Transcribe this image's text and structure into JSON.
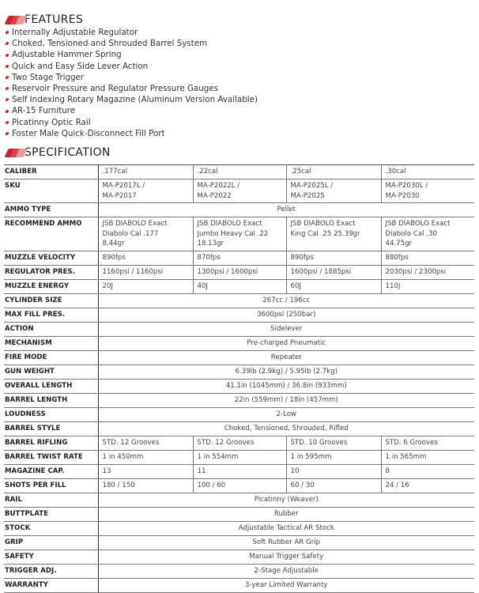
{
  "features": {
    "title": "FEATURES",
    "items": [
      "Internally Adjustable Regulator",
      "Choked, Tensioned and Shrouded Barrel System",
      "Adjustable Hammer Spring",
      "Quick and Easy Side Lever Action",
      "Two Stage Trigger",
      "Reservoir Pressure and Regulator Pressure Gauges",
      "Self Indexing Rotary Magazine (Aluminum Version Available)",
      "AR-15 Furniture",
      "Picatinny Optic Rail",
      "Foster Male Quick-Disconnect Fill Port"
    ]
  },
  "specification": {
    "title": "SPECIFICATION",
    "rows": [
      {
        "label": "CALIBER",
        "values": [
          ".177cal",
          ".22cal",
          ".25cal",
          ".30cal"
        ]
      },
      {
        "label": "SKU",
        "values": [
          "MA-P2017L /\nMA-P2017",
          "MA-P2022L /\nMA-P2022",
          "MA-P2025L /\nMA-P2025",
          "MA-P2030L /\nMA-P2030"
        ]
      },
      {
        "label": "AMMO TYPE",
        "value": "Pellet"
      },
      {
        "label": "RECOMMEND AMMO",
        "values": [
          "JSB DIABOLO Exact\nDiabolo Cal .177\n8.44gr",
          "JSB DIABOLO Exact\nJumbo Heavy Cal .22\n18.13gr",
          "JSB DIABOLO Exact\nKing Cal .25 25.39gr",
          "JSB DIABOLO Exact\nDiabolo Cal .30\n44.75gr"
        ]
      },
      {
        "label": "MUZZLE VELOCITY",
        "values": [
          "890fps",
          "870fps",
          "890fps",
          "880fps"
        ]
      },
      {
        "label": "REGULATOR PRES.",
        "values": [
          "1160psi / 1160psi",
          "1300psi / 1600psi",
          "1600psi / 1885psi",
          "2030psi / 2300psi"
        ]
      },
      {
        "label": "MUZZLE ENERGY",
        "values": [
          "20J",
          "40J",
          "60J",
          "110J"
        ]
      },
      {
        "label": "CYLINDER SIZE",
        "value": "267cc / 196cc"
      },
      {
        "label": "MAX FILL PRES.",
        "value": "3600psi (250bar)"
      },
      {
        "label": "ACTION",
        "value": "Sidelever"
      },
      {
        "label": "MECHANISM",
        "value": "Pre-charged Pneumatic"
      },
      {
        "label": "FIRE MODE",
        "value": "Repeater"
      },
      {
        "label": "GUN WEIGHT",
        "value": "6.39lb (2.9kg) / 5.95lb (2.7kg)"
      },
      {
        "label": "OVERALL LENGTH",
        "value": "41.1in (1045mm) / 36.8in (933mm)"
      },
      {
        "label": "BARREL LENGTH",
        "value": "22in (559mm) / 18in (457mm)"
      },
      {
        "label": "LOUDNESS",
        "value": "2-Low"
      },
      {
        "label": "BARREL STYLE",
        "value": "Choked, Tensioned, Shrouded, Rifled"
      },
      {
        "label": "BARREL RIFLING",
        "values": [
          "STD. 12 Grooves",
          "STD. 12 Grooves",
          "STD. 10 Grooves",
          "STD. 6 Grooves"
        ]
      },
      {
        "label": "BARREL TWIST RATE",
        "values": [
          "1 in 450mm",
          "1 in 554mm",
          "1 in 595mm",
          "1 in 565mm"
        ]
      },
      {
        "label": "MAGAZINE CAP.",
        "values": [
          "13",
          "11",
          "10",
          "8"
        ]
      },
      {
        "label": "SHOTS PER FILL",
        "values": [
          "180 / 150",
          "100 / 60",
          "60 / 30",
          "24 / 16"
        ]
      },
      {
        "label": "RAIL",
        "value": "Picatinny (Weaver)"
      },
      {
        "label": "BUTTPLATE",
        "value": "Rubber"
      },
      {
        "label": "STOCK",
        "value": "Adjustable Tactical AR Stock"
      },
      {
        "label": "GRIP",
        "value": "Soft Rubber AR Grip"
      },
      {
        "label": "SAFETY",
        "value": "Manual Trigger Safety"
      },
      {
        "label": "TRIGGER ADJ.",
        "value": "2-Stage Adjustable"
      },
      {
        "label": "WARRANTY",
        "value": "3-year Limited Warranty"
      }
    ]
  },
  "colors": {
    "accent": "#d0282e",
    "accent_light": "#e88a8c"
  }
}
